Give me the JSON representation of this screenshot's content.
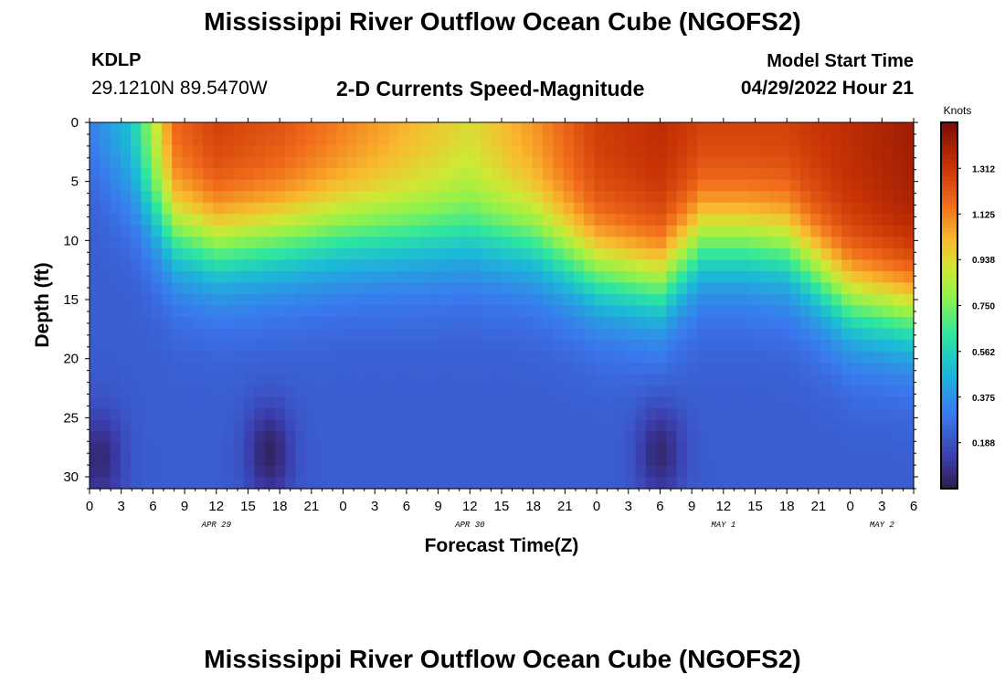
{
  "header": {
    "title": "Mississippi River Outflow Ocean Cube (NGOFS2)",
    "station_id": "KDLP",
    "station_coords": "29.1210N  89.5470W",
    "plot_title": "2-D Currents Speed-Magnitude",
    "start_label": "Model Start Time",
    "start_value": "04/29/2022 Hour 21"
  },
  "footer": {
    "title": "Mississippi River Outflow Ocean Cube (NGOFS2)"
  },
  "chart_data": {
    "type": "heatmap",
    "xlabel": "Forecast Time(Z)",
    "ylabel": "Depth (ft)",
    "x_ticks": [
      "0",
      "3",
      "6",
      "9",
      "12",
      "15",
      "18",
      "21",
      "0",
      "3",
      "6",
      "9",
      "12",
      "15",
      "18",
      "21",
      "0",
      "3",
      "6",
      "9",
      "12",
      "15",
      "18",
      "21",
      "0",
      "3",
      "6"
    ],
    "x_range_hours": [
      0,
      78
    ],
    "date_ticks": [
      {
        "label": "APR 29",
        "hour": 12
      },
      {
        "label": "APR 30",
        "hour": 36
      },
      {
        "label": "MAY 1",
        "hour": 60
      },
      {
        "label": "MAY 2",
        "hour": 75
      }
    ],
    "y_ticks": [
      "0",
      "5",
      "10",
      "15",
      "20",
      "25",
      "30"
    ],
    "y_range_ft": [
      0,
      31
    ],
    "y_inverted": true,
    "colorbar": {
      "title": "Knots",
      "ticks": [
        "1.312",
        "1.125",
        "0.938",
        "0.750",
        "0.562",
        "0.375",
        "0.188"
      ],
      "range": [
        0,
        1.5
      ]
    },
    "surface_keyframes_hours": [
      0,
      4,
      8,
      12,
      18,
      24,
      30,
      36,
      42,
      48,
      54,
      58,
      62,
      66,
      72,
      78
    ],
    "surface_keyframes_knots": [
      0.35,
      0.55,
      1.2,
      1.3,
      1.25,
      1.15,
      1.05,
      0.95,
      1.1,
      1.3,
      1.35,
      1.3,
      1.3,
      1.3,
      1.35,
      1.42
    ],
    "shear_layer_depth_keyframes_hours": [
      0,
      4,
      8,
      12,
      18,
      24,
      30,
      36,
      42,
      48,
      54,
      58,
      62,
      66,
      72,
      78
    ],
    "shear_layer_depth_keyframes_ft": [
      3,
      6,
      9.5,
      10.5,
      10,
      9.5,
      9.5,
      9.5,
      10,
      12.5,
      13.5,
      10,
      10,
      10.5,
      15,
      16
    ],
    "low_speed_cores": [
      {
        "hour": 1,
        "depth_ft": 28.5,
        "knots": 0.05
      },
      {
        "hour": 17,
        "depth_ft": 28,
        "knots": 0.03
      },
      {
        "hour": 54,
        "depth_ft": 28,
        "knots": 0.05
      }
    ]
  }
}
